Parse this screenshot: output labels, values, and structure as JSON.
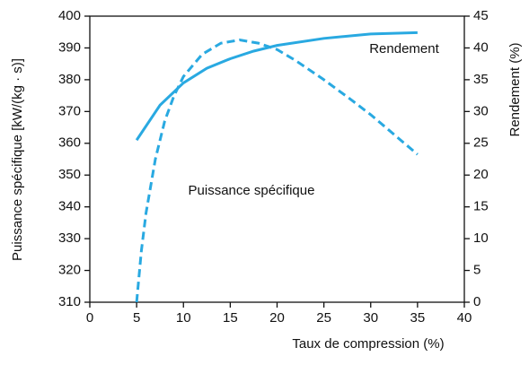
{
  "chart_data": {
    "type": "line",
    "xlabel": "Taux de compression (%)",
    "ylabel": "Puissance spécifique [kW/(kg · s)]",
    "y2label": "Rendement (%)",
    "xlim": [
      0,
      40
    ],
    "xticks": [
      0,
      5,
      10,
      15,
      20,
      25,
      30,
      35,
      40
    ],
    "ylim": [
      310,
      400
    ],
    "yticks": [
      310,
      320,
      330,
      340,
      350,
      360,
      370,
      380,
      390,
      400
    ],
    "y2lim": [
      0,
      45
    ],
    "y2ticks": [
      0,
      5,
      10,
      15,
      20,
      25,
      30,
      35,
      40,
      45
    ],
    "grid": false,
    "series": [
      {
        "name": "Rendement",
        "color": "#29a9e1",
        "dash": false,
        "axis": "y2",
        "x": [
          5,
          7.5,
          10,
          12.5,
          15,
          17.5,
          20,
          25,
          30,
          35
        ],
        "values": [
          25.5,
          31,
          34.5,
          36.8,
          38.3,
          39.5,
          40.4,
          41.5,
          42.2,
          42.4
        ]
      },
      {
        "name": "Puissance spécifique",
        "color": "#29a9e1",
        "dash": true,
        "axis": "y",
        "x": [
          5,
          5.5,
          6,
          7,
          8,
          9,
          10,
          12,
          14,
          16,
          18,
          20,
          22,
          25,
          28,
          30,
          33,
          35
        ],
        "values": [
          310,
          326,
          338,
          355,
          367,
          375,
          381,
          388,
          391.5,
          392.5,
          391.5,
          389.5,
          386,
          380,
          373.5,
          369,
          361.5,
          356.5
        ]
      }
    ]
  }
}
